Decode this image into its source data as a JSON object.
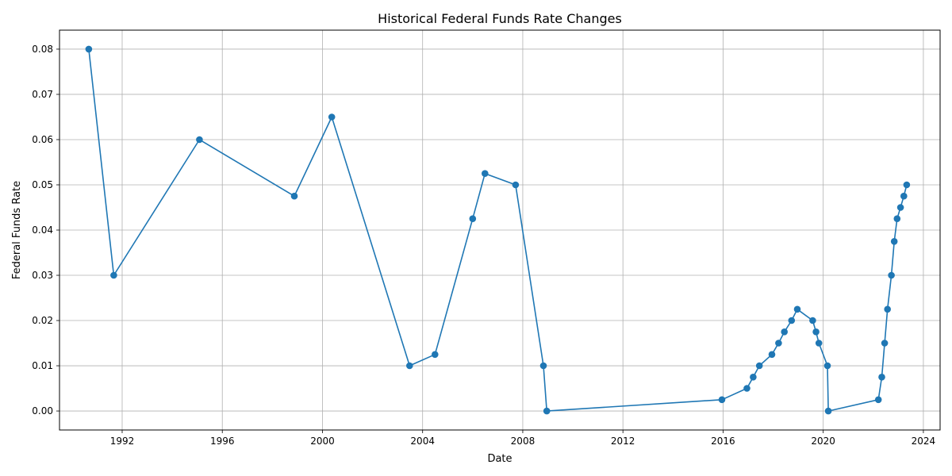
{
  "chart_data": {
    "type": "line",
    "title": "Historical Federal Funds Rate Changes",
    "xlabel": "Date",
    "ylabel": "Federal Funds Rate",
    "xlim": [
      "1989-07-01",
      "2024-09-01"
    ],
    "ylim": [
      -0.0042,
      0.0842
    ],
    "x_ticks": [
      "1992",
      "1996",
      "2000",
      "2004",
      "2008",
      "2012",
      "2016",
      "2020",
      "2024"
    ],
    "y_ticks": [
      "0.00",
      "0.01",
      "0.02",
      "0.03",
      "0.04",
      "0.05",
      "0.06",
      "0.07",
      "0.08"
    ],
    "grid": true,
    "line_color": "#1f77b4",
    "series": [
      {
        "x": [
          "1990-09-01",
          "1991-09-01",
          "1995-02-01",
          "1998-11-17",
          "2000-05-16",
          "2003-06-25",
          "2004-06-30",
          "2005-12-31",
          "2006-06-29",
          "2007-09-18",
          "2008-10-29",
          "2008-12-16",
          "2015-12-16",
          "2016-12-14",
          "2017-03-15",
          "2017-06-14",
          "2017-12-13",
          "2018-03-21",
          "2018-06-13",
          "2018-09-26",
          "2018-12-19",
          "2019-07-31",
          "2019-09-18",
          "2019-10-30",
          "2020-03-03",
          "2020-03-15",
          "2022-03-16",
          "2022-05-04",
          "2022-06-15",
          "2022-07-27",
          "2022-09-21",
          "2022-11-02",
          "2022-12-14",
          "2023-02-01",
          "2023-03-22",
          "2023-05-03"
        ],
        "y": [
          0.08,
          0.03,
          0.06,
          0.0475,
          0.065,
          0.01,
          0.0125,
          0.0425,
          0.0525,
          0.05,
          0.01,
          0.0,
          0.0025,
          0.005,
          0.0075,
          0.01,
          0.0125,
          0.015,
          0.0175,
          0.02,
          0.0225,
          0.02,
          0.0175,
          0.015,
          0.01,
          0.0,
          0.0025,
          0.0075,
          0.015,
          0.0225,
          0.03,
          0.0375,
          0.0425,
          0.045,
          0.0475,
          0.05
        ]
      }
    ]
  }
}
